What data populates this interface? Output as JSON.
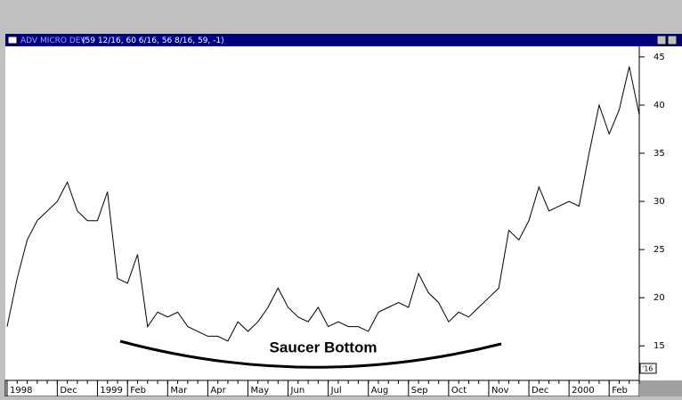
{
  "window": {
    "title": "ADV MICRO DEV",
    "quote": "(59 12/16, 60 6/16, 56 8/16, 59, -1)"
  },
  "chart_data": {
    "type": "line",
    "categories": [
      "1998",
      null,
      null,
      null,
      null,
      "Dec",
      null,
      null,
      null,
      "1999",
      null,
      null,
      "Feb",
      null,
      null,
      null,
      "Mar",
      null,
      null,
      null,
      "Apr",
      null,
      null,
      null,
      "May",
      null,
      null,
      null,
      "Jun",
      null,
      null,
      null,
      "Jul",
      null,
      null,
      null,
      "Aug",
      null,
      null,
      null,
      "Sep",
      null,
      null,
      null,
      "Oct",
      null,
      null,
      null,
      "Nov",
      null,
      null,
      null,
      "Dec",
      null,
      null,
      null,
      "2000",
      null,
      null,
      null,
      "Feb",
      null,
      null,
      null
    ],
    "series": [
      {
        "name": "ADV MICRO DEV",
        "color": "#000000",
        "values": [
          17,
          22,
          26,
          28,
          29,
          30,
          32,
          29,
          28,
          28,
          31,
          22,
          21.5,
          24.5,
          17,
          18.5,
          18,
          18.5,
          17,
          16.5,
          16,
          16,
          15.5,
          17.5,
          16.5,
          17.5,
          19,
          21,
          19,
          18,
          17.5,
          19,
          17,
          17.5,
          17,
          17,
          16.5,
          18.5,
          19,
          19.5,
          19,
          22.5,
          20.5,
          19.5,
          17.5,
          18.5,
          18,
          19,
          20,
          21,
          27,
          26,
          28,
          31.5,
          29,
          29.5,
          30,
          29.5,
          35,
          40,
          37,
          39.5,
          44,
          39
        ]
      }
    ],
    "ylim": [
      11.6,
      46.1
    ],
    "yticks": [
      15,
      20,
      25,
      30,
      35,
      40,
      45
    ],
    "annotations": [
      "Saucer Bottom"
    ],
    "scale_label": "'16"
  }
}
